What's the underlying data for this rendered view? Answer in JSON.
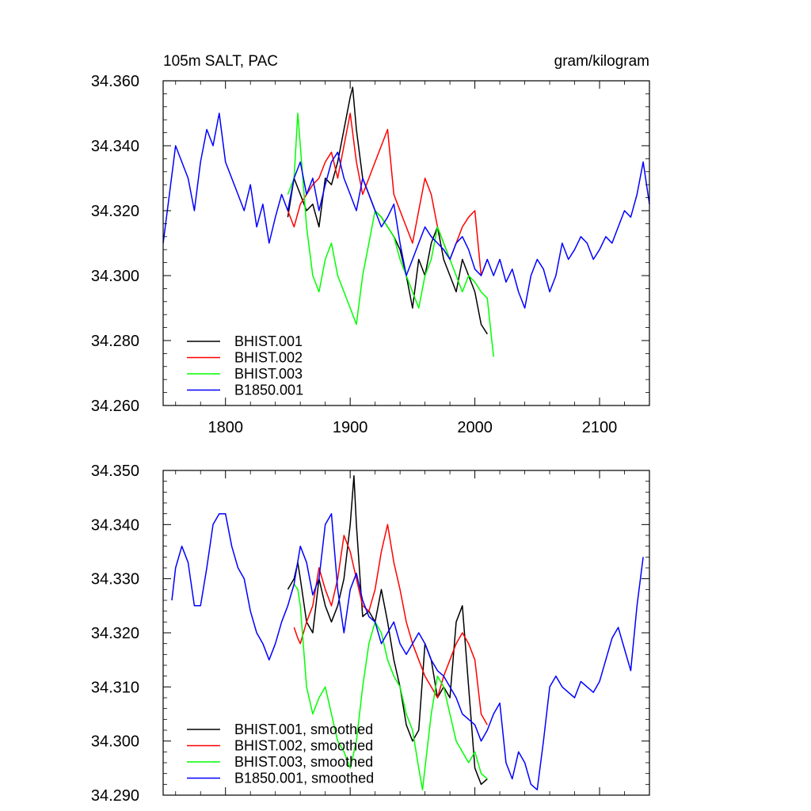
{
  "chart_data": [
    {
      "type": "line",
      "title_left": "105m SALT, PAC",
      "title_right": "gram/kilogram",
      "xlim": [
        1750,
        2140
      ],
      "ylim": [
        34.26,
        34.36
      ],
      "x_ticks": [
        1800,
        1900,
        2000,
        2100
      ],
      "x_tick_labels": [
        "1800",
        "1900",
        "2000",
        "2100"
      ],
      "y_ticks": [
        34.26,
        34.28,
        34.3,
        34.32,
        34.34,
        34.36
      ],
      "y_tick_labels": [
        "34.260",
        "34.280",
        "34.300",
        "34.320",
        "34.340",
        "34.360"
      ],
      "legend_position": "bottom-left",
      "series": [
        {
          "name": "BHIST.001",
          "color": "#000000",
          "x": [
            1850,
            1855,
            1860,
            1865,
            1870,
            1875,
            1880,
            1885,
            1890,
            1895,
            1900,
            1902,
            1905,
            1910,
            1915,
            1920,
            1925,
            1930,
            1935,
            1940,
            1945,
            1950,
            1955,
            1960,
            1965,
            1970,
            1975,
            1980,
            1985,
            1990,
            1995,
            2000,
            2005,
            2010
          ],
          "y": [
            34.318,
            34.33,
            34.325,
            34.32,
            34.322,
            34.315,
            34.33,
            34.328,
            34.335,
            34.345,
            34.355,
            34.358,
            34.345,
            34.33,
            34.325,
            34.32,
            34.318,
            34.315,
            34.312,
            34.308,
            34.3,
            34.29,
            34.305,
            34.3,
            34.31,
            34.315,
            34.305,
            34.3,
            34.295,
            34.305,
            34.3,
            34.295,
            34.285,
            34.282
          ]
        },
        {
          "name": "BHIST.002",
          "color": "#ff0000",
          "x": [
            1850,
            1855,
            1860,
            1865,
            1870,
            1875,
            1880,
            1885,
            1890,
            1895,
            1900,
            1905,
            1910,
            1915,
            1920,
            1925,
            1930,
            1935,
            1940,
            1945,
            1950,
            1955,
            1960,
            1965,
            1970,
            1975,
            1980,
            1985,
            1990,
            1995,
            2000,
            2005,
            2010
          ],
          "y": [
            34.32,
            34.315,
            34.322,
            34.325,
            34.328,
            34.33,
            34.335,
            34.338,
            34.33,
            34.34,
            34.35,
            34.335,
            34.325,
            34.33,
            34.335,
            34.34,
            34.345,
            34.325,
            34.32,
            34.315,
            34.31,
            34.32,
            34.33,
            34.325,
            34.315,
            34.31,
            34.305,
            34.31,
            34.315,
            34.318,
            34.32,
            34.3,
            34.305
          ]
        },
        {
          "name": "BHIST.003",
          "color": "#00ff00",
          "x": [
            1850,
            1855,
            1858,
            1860,
            1865,
            1870,
            1875,
            1880,
            1885,
            1890,
            1895,
            1900,
            1905,
            1910,
            1915,
            1920,
            1925,
            1930,
            1935,
            1940,
            1945,
            1950,
            1955,
            1960,
            1965,
            1970,
            1975,
            1980,
            1985,
            1990,
            1995,
            2000,
            2005,
            2010,
            2015
          ],
          "y": [
            34.325,
            34.33,
            34.35,
            34.34,
            34.315,
            34.3,
            34.295,
            34.305,
            34.31,
            34.3,
            34.295,
            34.29,
            34.285,
            34.3,
            34.31,
            34.32,
            34.318,
            34.315,
            34.312,
            34.305,
            34.3,
            34.295,
            34.29,
            34.3,
            34.305,
            34.315,
            34.31,
            34.305,
            34.3,
            34.295,
            34.3,
            34.298,
            34.295,
            34.293,
            34.275
          ]
        },
        {
          "name": "B1850.001",
          "color": "#0000ff",
          "x": [
            1750,
            1755,
            1760,
            1765,
            1770,
            1775,
            1780,
            1785,
            1790,
            1795,
            1800,
            1805,
            1810,
            1815,
            1820,
            1825,
            1830,
            1835,
            1840,
            1845,
            1850,
            1855,
            1860,
            1865,
            1870,
            1875,
            1880,
            1885,
            1890,
            1895,
            1900,
            1905,
            1910,
            1915,
            1920,
            1925,
            1930,
            1935,
            1940,
            1945,
            1950,
            1955,
            1960,
            1965,
            1970,
            1975,
            1980,
            1985,
            1990,
            1995,
            2000,
            2005,
            2010,
            2015,
            2020,
            2025,
            2030,
            2035,
            2040,
            2045,
            2050,
            2055,
            2060,
            2065,
            2070,
            2075,
            2080,
            2085,
            2090,
            2095,
            2100,
            2105,
            2110,
            2115,
            2120,
            2125,
            2130,
            2135,
            2140
          ],
          "y": [
            34.31,
            34.325,
            34.34,
            34.335,
            34.33,
            34.32,
            34.335,
            34.345,
            34.34,
            34.35,
            34.335,
            34.33,
            34.325,
            34.32,
            34.328,
            34.315,
            34.322,
            34.31,
            34.318,
            34.325,
            34.32,
            34.33,
            34.335,
            34.325,
            34.33,
            34.32,
            34.328,
            34.335,
            34.338,
            34.33,
            34.325,
            34.32,
            34.33,
            34.325,
            34.32,
            34.315,
            34.318,
            34.322,
            34.31,
            34.3,
            34.305,
            34.31,
            34.315,
            34.312,
            34.31,
            34.308,
            34.305,
            34.31,
            34.312,
            34.308,
            34.302,
            34.3,
            34.305,
            34.3,
            34.305,
            34.298,
            34.302,
            34.295,
            34.29,
            34.3,
            34.305,
            34.302,
            34.295,
            34.3,
            34.31,
            34.305,
            34.308,
            34.312,
            34.31,
            34.305,
            34.308,
            34.312,
            34.31,
            34.315,
            34.32,
            34.318,
            34.325,
            34.335,
            34.322
          ]
        }
      ]
    },
    {
      "type": "line",
      "xlim": [
        1750,
        2140
      ],
      "ylim": [
        34.29,
        34.35
      ],
      "x_ticks": [
        1800,
        1900,
        2000,
        2100
      ],
      "y_ticks": [
        34.29,
        34.3,
        34.31,
        34.32,
        34.33,
        34.34,
        34.35
      ],
      "y_tick_labels": [
        "34.290",
        "34.300",
        "34.310",
        "34.320",
        "34.330",
        "34.340",
        "34.350"
      ],
      "legend_position": "bottom-left",
      "series": [
        {
          "name": "BHIST.001, smoothed",
          "color": "#000000",
          "x": [
            1850,
            1855,
            1858,
            1860,
            1865,
            1870,
            1875,
            1880,
            1885,
            1890,
            1895,
            1900,
            1903,
            1905,
            1910,
            1915,
            1920,
            1925,
            1930,
            1935,
            1940,
            1945,
            1950,
            1955,
            1960,
            1965,
            1970,
            1975,
            1980,
            1985,
            1990,
            1995,
            2000,
            2005,
            2010
          ],
          "y": [
            34.328,
            34.33,
            34.333,
            34.33,
            34.322,
            34.32,
            34.33,
            34.325,
            34.322,
            34.325,
            34.33,
            34.34,
            34.349,
            34.34,
            34.323,
            34.324,
            34.322,
            34.328,
            34.322,
            34.315,
            34.31,
            34.303,
            34.3,
            34.302,
            34.318,
            34.315,
            34.308,
            34.31,
            34.308,
            34.322,
            34.325,
            34.31,
            34.295,
            34.292,
            34.293
          ]
        },
        {
          "name": "BHIST.002, smoothed",
          "color": "#ff0000",
          "x": [
            1855,
            1858,
            1860,
            1865,
            1870,
            1875,
            1880,
            1885,
            1890,
            1895,
            1900,
            1905,
            1910,
            1915,
            1920,
            1925,
            1930,
            1935,
            1940,
            1945,
            1950,
            1955,
            1960,
            1965,
            1970,
            1975,
            1980,
            1985,
            1990,
            1995,
            2000,
            2005,
            2010
          ],
          "y": [
            34.321,
            34.319,
            34.318,
            34.322,
            34.325,
            34.332,
            34.328,
            34.325,
            34.33,
            34.338,
            34.335,
            34.33,
            34.325,
            34.324,
            34.328,
            34.335,
            34.34,
            34.333,
            34.328,
            34.322,
            34.318,
            34.315,
            34.312,
            34.31,
            34.308,
            34.312,
            34.315,
            34.318,
            34.32,
            34.318,
            34.315,
            34.305,
            34.303
          ]
        },
        {
          "name": "BHIST.003, smoothed",
          "color": "#00ff00",
          "x": [
            1855,
            1858,
            1860,
            1865,
            1870,
            1875,
            1880,
            1885,
            1890,
            1895,
            1900,
            1905,
            1910,
            1915,
            1920,
            1925,
            1930,
            1935,
            1940,
            1945,
            1950,
            1955,
            1958,
            1960,
            1965,
            1970,
            1975,
            1980,
            1985,
            1990,
            1995,
            2000,
            2005,
            2010
          ],
          "y": [
            34.329,
            34.328,
            34.325,
            34.31,
            34.305,
            34.308,
            34.31,
            34.305,
            34.3,
            34.298,
            34.295,
            34.3,
            34.31,
            34.318,
            34.322,
            34.32,
            34.315,
            34.312,
            34.31,
            34.305,
            34.302,
            34.295,
            34.291,
            34.295,
            34.305,
            34.312,
            34.31,
            34.305,
            34.3,
            34.298,
            34.296,
            34.298,
            34.294,
            34.293
          ]
        },
        {
          "name": "B1850.001, smoothed",
          "color": "#0000ff",
          "x": [
            1757,
            1760,
            1765,
            1770,
            1775,
            1780,
            1785,
            1790,
            1795,
            1800,
            1805,
            1810,
            1815,
            1820,
            1825,
            1830,
            1835,
            1840,
            1845,
            1850,
            1855,
            1860,
            1865,
            1870,
            1875,
            1880,
            1885,
            1890,
            1895,
            1900,
            1905,
            1910,
            1915,
            1920,
            1925,
            1930,
            1935,
            1940,
            1945,
            1950,
            1955,
            1960,
            1965,
            1970,
            1975,
            1980,
            1985,
            1990,
            1995,
            2000,
            2005,
            2010,
            2015,
            2020,
            2025,
            2030,
            2035,
            2040,
            2045,
            2050,
            2055,
            2060,
            2065,
            2070,
            2075,
            2080,
            2085,
            2090,
            2095,
            2100,
            2105,
            2110,
            2115,
            2120,
            2125,
            2130,
            2135
          ],
          "y": [
            34.326,
            34.332,
            34.336,
            34.333,
            34.325,
            34.325,
            34.332,
            34.34,
            34.342,
            34.342,
            34.336,
            34.332,
            34.33,
            34.324,
            34.32,
            34.318,
            34.315,
            34.318,
            34.322,
            34.325,
            34.329,
            34.336,
            34.333,
            34.327,
            34.33,
            34.34,
            34.342,
            34.328,
            34.32,
            34.328,
            34.331,
            34.326,
            34.323,
            34.322,
            34.318,
            34.32,
            34.322,
            34.318,
            34.316,
            34.318,
            34.32,
            34.318,
            34.315,
            34.313,
            34.312,
            34.31,
            34.308,
            34.305,
            34.304,
            34.303,
            34.3,
            34.302,
            34.305,
            34.307,
            34.296,
            34.293,
            34.298,
            34.296,
            34.292,
            34.291,
            34.3,
            34.31,
            34.312,
            34.31,
            34.309,
            34.308,
            34.311,
            34.31,
            34.309,
            34.311,
            34.315,
            34.319,
            34.321,
            34.317,
            34.313,
            34.325,
            34.334
          ]
        }
      ]
    }
  ]
}
